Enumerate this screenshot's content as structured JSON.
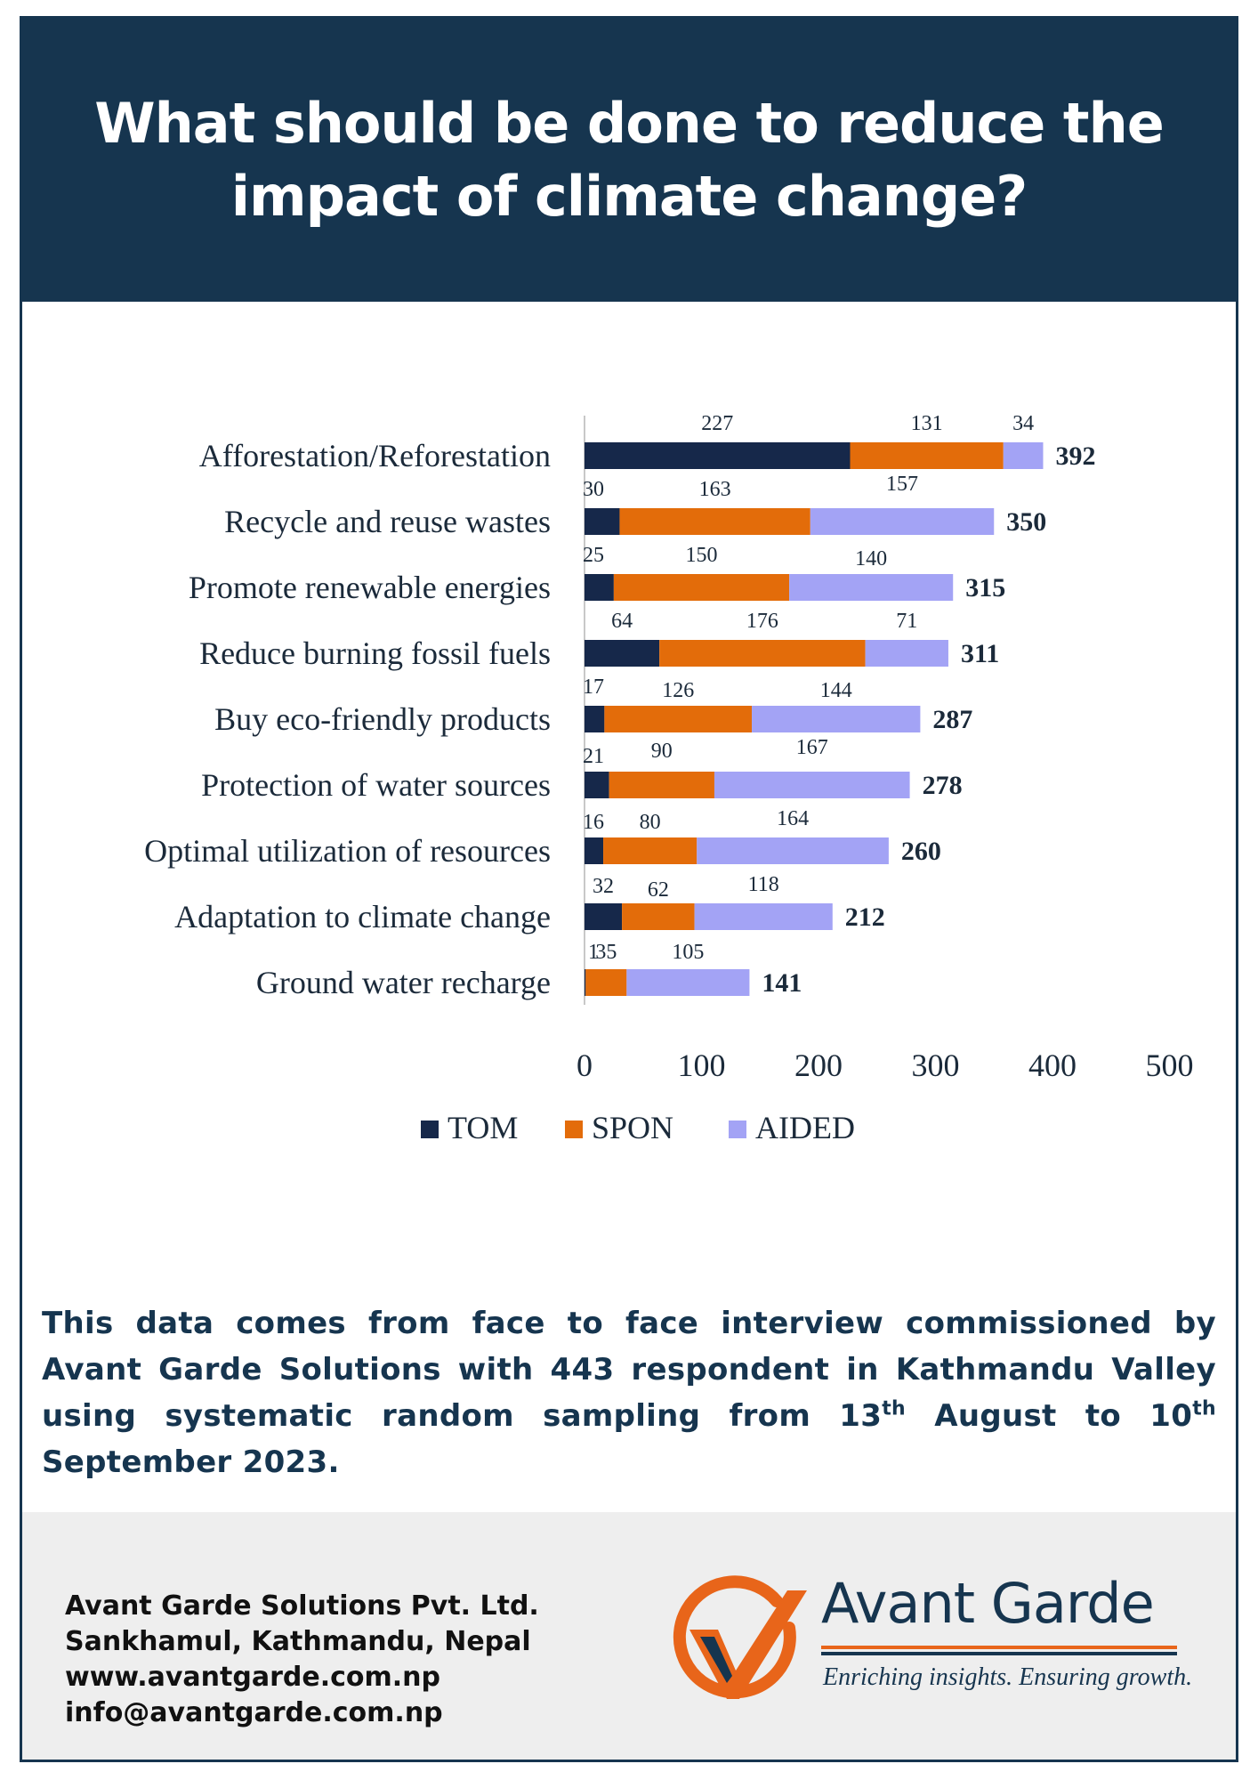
{
  "header": {
    "title": "What should be done to reduce the impact of climate change?"
  },
  "chart_data": {
    "type": "bar",
    "orientation": "horizontal",
    "stacked": true,
    "categories": [
      "Afforestation/Reforestation",
      "Recycle and reuse wastes",
      "Promote renewable energies",
      "Reduce burning fossil fuels",
      "Buy eco-friendly products",
      "Protection of water sources",
      "Optimal utilization of resources",
      "Adaptation to climate change",
      "Ground water recharge"
    ],
    "series": [
      {
        "name": "TOM",
        "color": "#16284a",
        "values": [
          227,
          30,
          25,
          64,
          17,
          21,
          16,
          32,
          1
        ]
      },
      {
        "name": "SPON",
        "color": "#e36c0a",
        "values": [
          131,
          163,
          150,
          176,
          126,
          90,
          80,
          62,
          35
        ]
      },
      {
        "name": "AIDED",
        "color": "#a3a3f5",
        "values": [
          34,
          157,
          140,
          71,
          144,
          167,
          164,
          118,
          105
        ]
      }
    ],
    "totals": [
      392,
      350,
      315,
      311,
      287,
      278,
      260,
      212,
      141
    ],
    "xlim": [
      0,
      500
    ],
    "xticks": [
      "0",
      "100",
      "200",
      "300",
      "400",
      "500"
    ],
    "grid": false,
    "legend_position": "bottom"
  },
  "note": {
    "line1": "This data comes from face to face interview commissioned by Avant Garde Solutions with 443 respondent in Kathmandu Valley using systematic random sampling from 13",
    "sup1": "th",
    "line2": " August to  10",
    "sup2": "th",
    "line3": "  September 2023."
  },
  "footer": {
    "company": "Avant Garde Solutions Pvt. Ltd.",
    "address": "Sankhamul, Kathmandu, Nepal",
    "website": "www.avantgarde.com.np",
    "email": "info@avantgarde.com.np",
    "brand_name": "Avant Garde",
    "tagline": "Enriching insights. Ensuring growth.",
    "logo_icon": "checkmark-circle-logo-icon"
  }
}
